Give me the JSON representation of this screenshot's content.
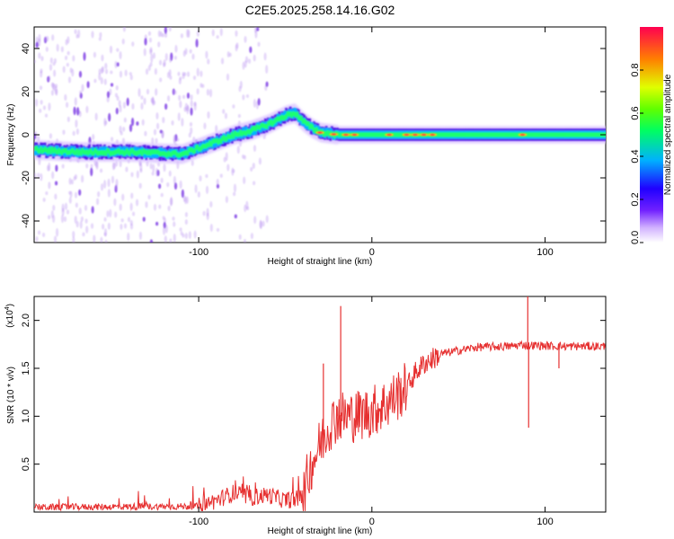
{
  "title": "C2E5.2025.258.14.16.G02",
  "chart_data": [
    {
      "type": "heatmap",
      "title": "C2E5.2025.258.14.16.G02",
      "xlabel": "Height of straight line (km)",
      "ylabel": "Frequency (Hz)",
      "xlim": [
        -195,
        135
      ],
      "ylim": [
        -50,
        50
      ],
      "xticks": [
        -100,
        0,
        100
      ],
      "yticks": [
        -40,
        -20,
        0,
        20,
        40
      ],
      "colorbar": {
        "label": "Normalized spectral amplitude",
        "range": [
          0,
          1
        ],
        "ticks": [
          "0.0",
          "0.2",
          "0.4",
          "0.6",
          "0.8"
        ],
        "colors": [
          "#ffffff",
          "#a070ff",
          "#3000ff",
          "#00c8ff",
          "#00ff40",
          "#c8ff00",
          "#ff8000",
          "#ff0040"
        ]
      },
      "ridge": {
        "x": [
          -195,
          -170,
          -140,
          -110,
          -100,
          -90,
          -80,
          -70,
          -60,
          -50,
          -45,
          -40,
          -35,
          -30,
          -20,
          0,
          20,
          40,
          60,
          85,
          100,
          135
        ],
        "y": [
          -7,
          -8,
          -8,
          -9,
          -6,
          -3,
          0,
          2,
          5,
          9,
          10,
          6,
          3,
          1,
          0,
          0,
          0,
          0,
          0,
          0,
          0,
          0
        ]
      }
    },
    {
      "type": "line",
      "xlabel": "Height of straight line (km)",
      "ylabel": "SNR (10 * v/v)",
      "y_multiplier": "(x10",
      "y_multiplier_exp": "4",
      "xlim": [
        -195,
        135
      ],
      "ylim": [
        0,
        2.25
      ],
      "xticks": [
        -100,
        0,
        100
      ],
      "yticks": [
        "0.5",
        "1.0",
        "1.5",
        "2.0"
      ],
      "color": "#e63030",
      "envelope": {
        "x": [
          -195,
          -100,
          -90,
          -80,
          -70,
          -60,
          -50,
          -40,
          -35,
          -30,
          -25,
          -20,
          -10,
          0,
          10,
          20,
          25,
          30,
          40,
          60,
          80,
          88,
          90,
          92,
          110,
          135
        ],
        "y": [
          0.05,
          0.06,
          0.12,
          0.2,
          0.15,
          0.18,
          0.12,
          0.15,
          0.5,
          0.7,
          0.9,
          1.0,
          1.0,
          1.05,
          1.15,
          1.3,
          1.45,
          1.55,
          1.65,
          1.72,
          1.73,
          1.75,
          1.73,
          1.74,
          1.73,
          1.73
        ]
      },
      "spikes": [
        {
          "x": -28,
          "y": 1.55
        },
        {
          "x": -18,
          "y": 2.15
        },
        {
          "x": -20,
          "y": 1.1
        },
        {
          "x": 90,
          "y": 2.3
        },
        {
          "x": 90.5,
          "y": 0.88
        },
        {
          "x": 108,
          "y": 1.5
        }
      ]
    }
  ]
}
